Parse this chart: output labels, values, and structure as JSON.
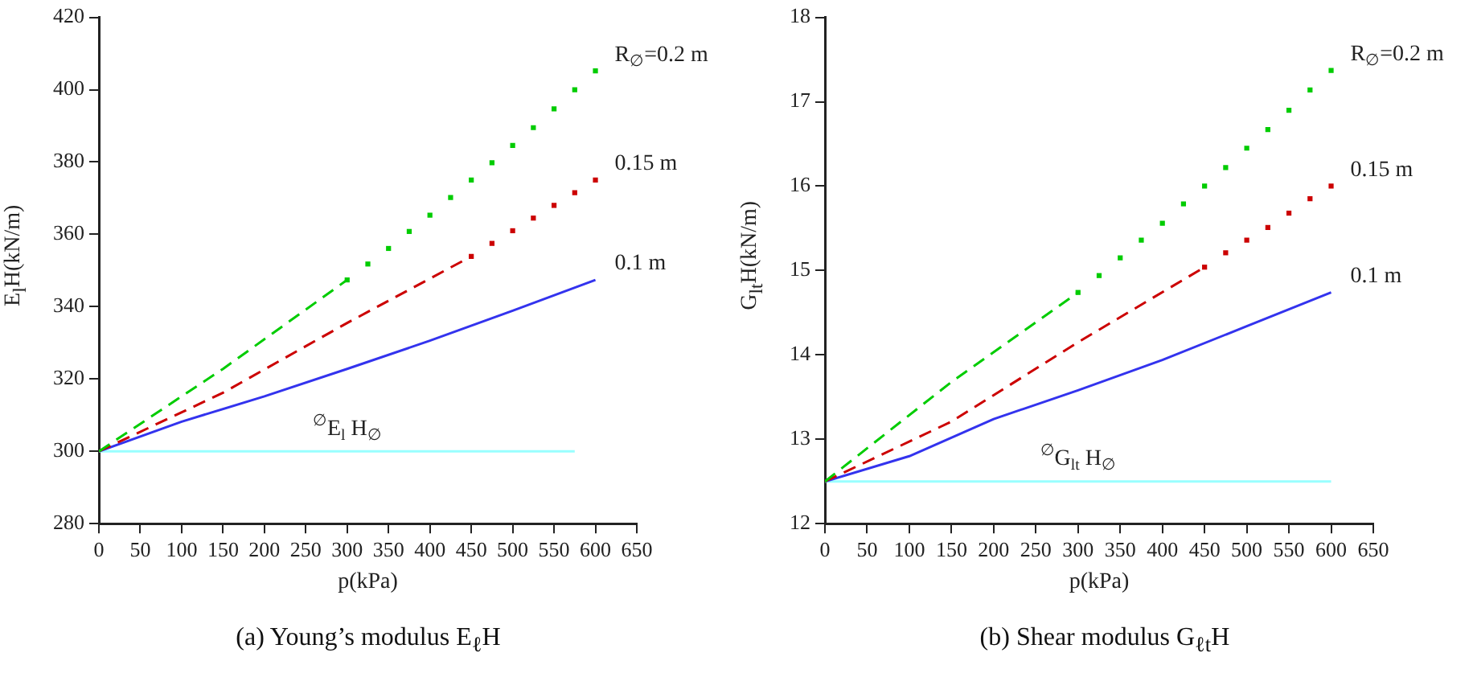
{
  "chart_data": [
    {
      "type": "line",
      "xlabel": "p(kPa)",
      "ylabel": "E$_{l}$H(kN/m)",
      "xlim": [
        0,
        650
      ],
      "xticks": [
        0,
        50,
        100,
        150,
        200,
        250,
        300,
        350,
        400,
        450,
        500,
        550,
        600,
        650
      ],
      "ylim": [
        280,
        420
      ],
      "yticks": [
        280,
        300,
        320,
        340,
        360,
        380,
        400,
        420
      ],
      "annotations": [
        "(a)  Young’s modulus E$_{ℓ}$H",
        {
          "text": "$^{∅}$E$_{l}$ H$_{∅}$",
          "x": 300,
          "y": 300
        }
      ],
      "series": [
        {
          "color": "#00cc00",
          "line_style": "dashed",
          "x": [
            0,
            150,
            300
          ],
          "values": [
            300,
            322.8,
            347.4
          ]
        },
        {
          "name": "R$_{∅}$=0.2 m",
          "type": "scatter",
          "marker": "square",
          "color": "#00cc00",
          "x": [
            300,
            325,
            350,
            375,
            400,
            425,
            450,
            475,
            500,
            525,
            550,
            575,
            600
          ],
          "values": [
            347.4,
            351.8,
            356.1,
            360.8,
            365.3,
            370.2,
            375.0,
            379.8,
            384.6,
            389.5,
            394.7,
            400.0,
            405.2
          ]
        },
        {
          "color": "#cc0000",
          "line_style": "dashed",
          "x": [
            0,
            150,
            300,
            450
          ],
          "values": [
            300,
            316.2,
            335.5,
            353.9
          ]
        },
        {
          "name": "0.15 m",
          "type": "scatter",
          "marker": "square",
          "color": "#cc0000",
          "x": [
            450,
            475,
            500,
            525,
            550,
            575,
            600
          ],
          "values": [
            353.9,
            357.5,
            361.0,
            364.5,
            368.0,
            371.5,
            375.0
          ]
        },
        {
          "name": "0.1 m",
          "color": "#3333ee",
          "x": [
            0,
            100,
            200,
            300,
            400,
            500,
            600
          ],
          "values": [
            300,
            308.2,
            315.2,
            322.8,
            330.6,
            338.9,
            347.4
          ]
        },
        {
          "color": "#99ffff",
          "x": [
            0,
            575
          ],
          "values": [
            300,
            300
          ]
        }
      ]
    },
    {
      "type": "line",
      "xlabel": "p(kPa)",
      "ylabel": "G$_{lt}$H(kN/m)",
      "xlim": [
        0,
        650
      ],
      "xticks": [
        0,
        50,
        100,
        150,
        200,
        250,
        300,
        350,
        400,
        450,
        500,
        550,
        600,
        650
      ],
      "ylim": [
        12,
        18
      ],
      "yticks": [
        12,
        13,
        14,
        15,
        16,
        17,
        18
      ],
      "annotations": [
        "(b)  Shear modulus G$_{ℓt}$H",
        {
          "text": "$^{∅}$G$_{lt}$ H$_{∅}$",
          "x": 300,
          "y": 12.5
        }
      ],
      "series": [
        {
          "color": "#00cc00",
          "line_style": "dashed",
          "x": [
            0,
            150,
            300
          ],
          "values": [
            12.5,
            13.68,
            14.74
          ]
        },
        {
          "name": "R$_{∅}$=0.2 m",
          "type": "scatter",
          "marker": "square",
          "color": "#00cc00",
          "x": [
            300,
            325,
            350,
            375,
            400,
            425,
            450,
            475,
            500,
            525,
            550,
            575,
            600
          ],
          "values": [
            14.74,
            14.94,
            15.15,
            15.36,
            15.56,
            15.79,
            16.0,
            16.22,
            16.45,
            16.67,
            16.9,
            17.14,
            17.37
          ]
        },
        {
          "color": "#cc0000",
          "line_style": "dashed",
          "x": [
            0,
            150,
            300,
            450
          ],
          "values": [
            12.5,
            13.21,
            14.15,
            15.04
          ]
        },
        {
          "name": "0.15 m",
          "type": "scatter",
          "marker": "square",
          "color": "#cc0000",
          "x": [
            450,
            475,
            500,
            525,
            550,
            575,
            600
          ],
          "values": [
            15.04,
            15.21,
            15.36,
            15.51,
            15.68,
            15.85,
            16.0
          ]
        },
        {
          "name": "0.1 m",
          "color": "#3333ee",
          "x": [
            0,
            100,
            200,
            300,
            400,
            500,
            600
          ],
          "values": [
            12.5,
            12.8,
            13.24,
            13.58,
            13.94,
            14.34,
            14.74
          ]
        },
        {
          "color": "#99ffff",
          "x": [
            0,
            600
          ],
          "values": [
            12.5,
            12.5
          ]
        }
      ]
    }
  ]
}
